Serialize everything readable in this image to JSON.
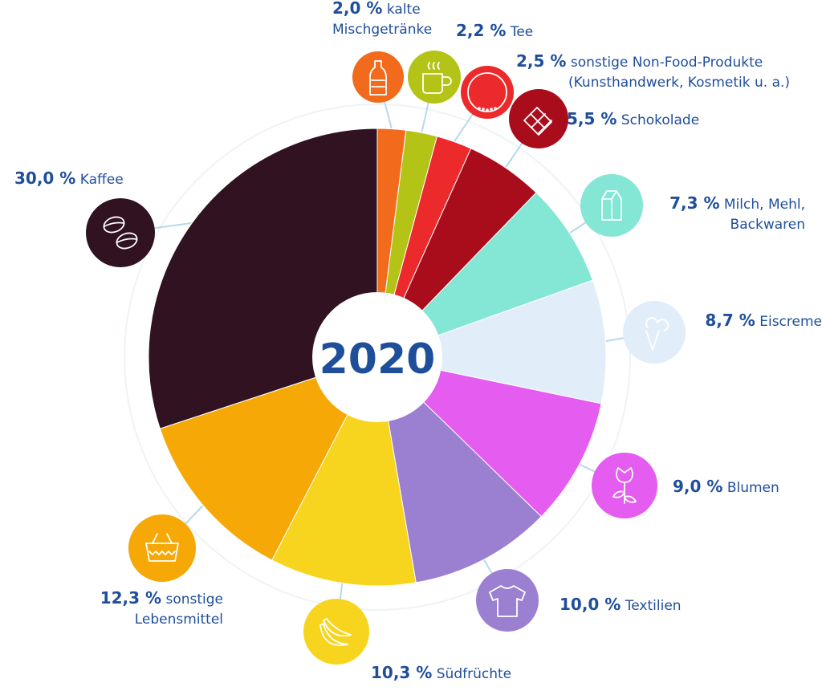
{
  "chart_data": {
    "type": "pie",
    "title": "2020",
    "text_color": "#1f4e9b",
    "leader_color": "#b7d9e8",
    "slices": [
      {
        "value": 2.0,
        "value_label": "2,0 %",
        "lines": [
          "kalte",
          "Mischgetränke"
        ],
        "color": "#f26a1c",
        "icon": "bottle-icon"
      },
      {
        "value": 2.2,
        "value_label": "2,2 %",
        "lines": [
          "Tee"
        ],
        "color": "#b3c417",
        "icon": "tea-cup-icon"
      },
      {
        "value": 2.5,
        "value_label": "2,5 %",
        "lines": [
          "sonstige Non-Food-Produkte",
          "(Kunsthandwerk, Kosmetik u. a.)"
        ],
        "color": "#ec2a2c",
        "icon": "necklace-icon"
      },
      {
        "value": 5.5,
        "value_label": "5,5 %",
        "lines": [
          "Schokolade"
        ],
        "color": "#a90d1c",
        "icon": "chocolate-icon"
      },
      {
        "value": 7.3,
        "value_label": "7,3 %",
        "lines": [
          "Milch, Mehl,",
          "Backwaren"
        ],
        "color": "#84e6d4",
        "icon": "milk-carton-icon"
      },
      {
        "value": 8.7,
        "value_label": "8,7 %",
        "lines": [
          "Eiscreme"
        ],
        "color": "#e1edf8",
        "icon": "ice-cream-icon"
      },
      {
        "value": 9.0,
        "value_label": "9,0 %",
        "lines": [
          "Blumen"
        ],
        "color": "#e55cf0",
        "icon": "rose-icon"
      },
      {
        "value": 10.0,
        "value_label": "10,0 %",
        "lines": [
          "Textilien"
        ],
        "color": "#9b80d1",
        "icon": "shirt-icon"
      },
      {
        "value": 10.3,
        "value_label": "10,3 %",
        "lines": [
          "Südfrüchte"
        ],
        "color": "#f7d51e",
        "icon": "banana-icon"
      },
      {
        "value": 12.3,
        "value_label": "12,3 %",
        "lines": [
          "sonstige",
          "Lebensmittel"
        ],
        "color": "#f6a806",
        "icon": "basket-icon"
      },
      {
        "value": 30.0,
        "value_label": "30,0 %",
        "lines": [
          "Kaffee"
        ],
        "color": "#301220",
        "icon": "coffee-bean-icon"
      }
    ]
  }
}
